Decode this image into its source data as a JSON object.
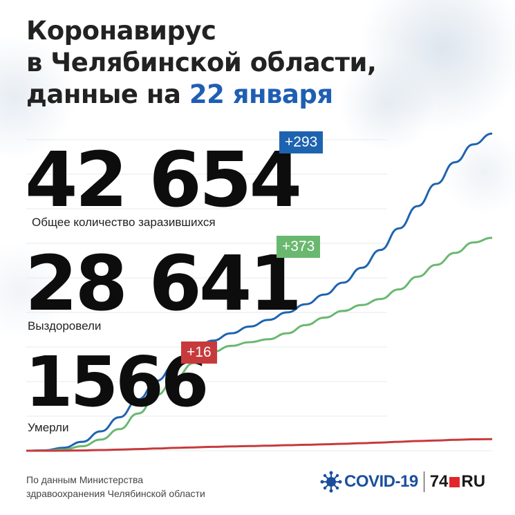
{
  "title": {
    "line1": "Коронавирус",
    "line2": "в Челябинской области,",
    "line3_prefix": "данные на ",
    "line3_date": "22 января"
  },
  "stats": {
    "total": {
      "value": "42 654",
      "delta": "+293",
      "label": "Общее количество заразившихся",
      "color": "#1e63b0"
    },
    "recovered": {
      "value": "28 641",
      "delta": "+373",
      "label": "Выздоровели",
      "color": "#6ab870"
    },
    "deaths": {
      "value": "1566",
      "delta": "+16",
      "label": "Умерли",
      "color": "#c73a3c"
    }
  },
  "source": {
    "line1": "По данным Министерства",
    "line2": "здравоохранения Челябинской области"
  },
  "logo": {
    "covid": "COVID-19",
    "brand_num": "74",
    "brand_suffix": "RU",
    "virus_icon": "virus-icon"
  },
  "chart_data": {
    "type": "line",
    "title": "",
    "xlabel": "",
    "ylabel": "",
    "ylim": [
      0,
      45000
    ],
    "x": [
      0,
      4,
      8,
      12,
      16,
      20,
      24,
      28,
      32,
      36,
      40,
      44,
      48,
      52,
      56,
      60,
      64,
      68,
      72,
      76,
      80,
      84,
      88,
      92,
      96,
      100
    ],
    "series": [
      {
        "color": "#1e63b0",
        "values": [
          0,
          50,
          400,
          1200,
          2600,
          4500,
          6900,
          9400,
          11700,
          13500,
          14800,
          15800,
          16700,
          17600,
          18600,
          19700,
          21000,
          22600,
          24600,
          27000,
          29900,
          32900,
          35900,
          38800,
          41200,
          42654
        ]
      },
      {
        "color": "#6ab870",
        "values": [
          0,
          20,
          150,
          600,
          1500,
          2900,
          5000,
          7500,
          9800,
          11800,
          13300,
          14100,
          14600,
          15000,
          15800,
          16900,
          17900,
          18800,
          19600,
          20400,
          21700,
          23400,
          25000,
          26600,
          28000,
          28641
        ]
      },
      {
        "color": "#c73a3c",
        "values": [
          0,
          2,
          10,
          40,
          90,
          150,
          220,
          300,
          380,
          450,
          520,
          580,
          630,
          680,
          740,
          800,
          860,
          930,
          1010,
          1100,
          1200,
          1300,
          1380,
          1460,
          1530,
          1566
        ]
      }
    ]
  }
}
